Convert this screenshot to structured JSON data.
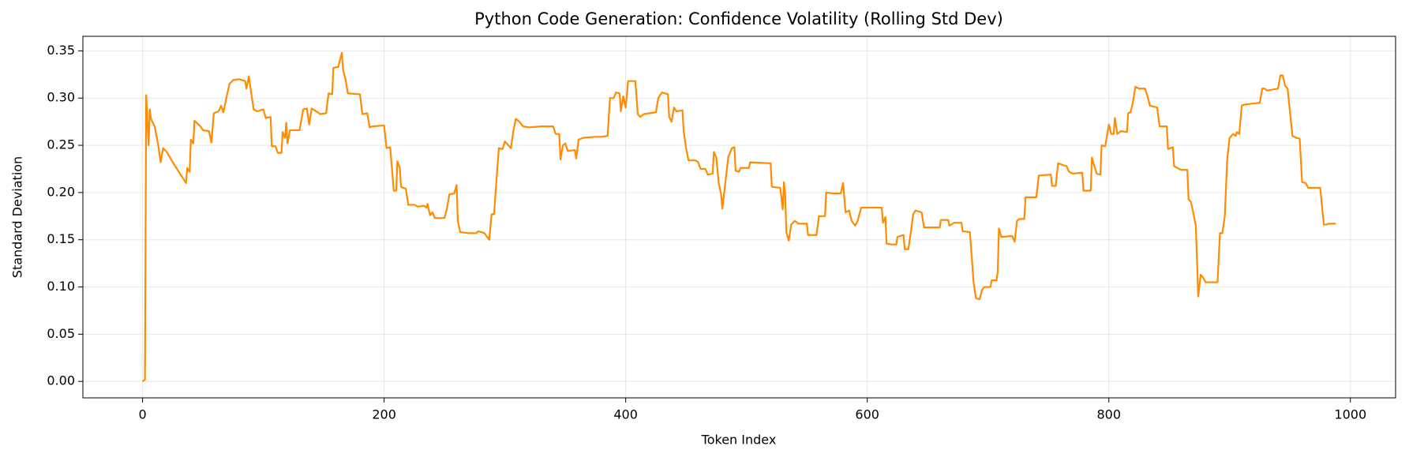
{
  "chart_data": {
    "type": "line",
    "title": "Python Code Generation: Confidence Volatility (Rolling Std Dev)",
    "xlabel": "Token Index",
    "ylabel": "Standard Deviation",
    "xlim": [
      -49.4,
      1037.4
    ],
    "ylim": [
      -0.0174,
      0.3654
    ],
    "xticks": [
      0,
      200,
      400,
      600,
      800,
      1000
    ],
    "yticks": [
      {
        "value": 0,
        "label": "0.00"
      },
      {
        "value": 0.05,
        "label": "0.05"
      },
      {
        "value": 0.1,
        "label": "0.10"
      },
      {
        "value": 0.15,
        "label": "0.15"
      },
      {
        "value": 0.2,
        "label": "0.20"
      },
      {
        "value": 0.25,
        "label": "0.25"
      },
      {
        "value": 0.3,
        "label": "0.30"
      },
      {
        "value": 0.35,
        "label": "0.35"
      }
    ],
    "grid": true,
    "x": [
      0,
      2,
      3,
      5,
      6,
      7,
      10,
      13,
      15,
      17,
      20,
      25,
      30,
      36,
      37,
      39,
      40,
      42,
      43,
      48,
      50,
      55,
      57,
      59,
      63,
      65,
      67,
      69,
      72,
      75,
      80,
      85,
      86,
      88,
      90,
      92,
      95,
      100,
      102,
      106,
      107,
      110,
      112,
      115,
      116,
      118,
      119,
      120,
      122,
      130,
      133,
      136,
      138,
      140,
      145,
      147,
      152,
      154,
      157,
      158,
      162,
      165,
      166,
      168,
      170,
      180,
      182,
      186,
      188,
      190,
      200,
      202,
      205,
      208,
      210,
      211,
      213,
      214,
      218,
      220,
      225,
      228,
      233,
      235,
      236,
      238,
      240,
      242,
      250,
      252,
      254,
      258,
      260,
      261,
      263,
      270,
      276,
      278,
      283,
      287,
      289,
      291,
      293,
      295,
      298,
      300,
      305,
      307,
      309,
      312,
      315,
      320,
      330,
      340,
      342,
      345,
      346,
      348,
      350,
      352,
      358,
      359,
      361,
      365,
      375,
      380,
      385,
      387,
      390,
      392,
      395,
      396,
      398,
      400,
      402,
      408,
      410,
      412,
      415,
      420,
      425,
      427,
      430,
      435,
      436,
      438,
      440,
      442,
      447,
      448,
      450,
      452,
      458,
      460,
      462,
      466,
      468,
      472,
      473,
      475,
      477,
      479,
      480,
      482,
      485,
      488,
      490,
      491,
      494,
      495,
      502,
      503,
      520,
      521,
      528,
      530,
      531,
      532,
      533,
      535,
      537,
      540,
      543,
      550,
      551,
      558,
      560,
      565,
      566,
      572,
      578,
      580,
      582,
      585,
      587,
      590,
      592,
      595,
      612,
      613,
      615,
      616,
      620,
      624,
      625,
      630,
      631,
      634,
      636,
      638,
      640,
      645,
      647,
      660,
      661,
      667,
      668,
      672,
      678,
      679,
      685,
      688,
      690,
      693,
      695,
      697,
      702,
      703,
      707,
      708,
      709,
      711,
      720,
      722,
      724,
      726,
      730,
      731,
      740,
      742,
      752,
      753,
      756,
      758,
      762,
      765,
      767,
      770,
      778,
      779,
      785,
      786,
      788,
      790,
      793,
      794,
      797,
      800,
      802,
      804,
      805,
      807,
      810,
      815,
      816,
      818,
      820,
      822,
      825,
      830,
      832,
      834,
      840,
      842,
      848,
      849,
      853,
      854,
      858,
      860,
      865,
      866,
      868,
      870,
      872,
      874,
      876,
      878,
      880,
      885,
      890,
      892,
      894,
      896,
      898,
      900,
      903,
      905,
      906,
      908,
      910,
      912,
      918,
      925,
      927,
      929,
      931,
      940,
      942,
      944,
      946,
      948,
      950,
      952,
      955,
      958,
      960,
      963,
      965,
      975,
      978,
      980,
      982,
      988
    ],
    "series": [
      {
        "name": "Rolling Std Dev",
        "color": "#ff8c00",
        "values": [
          0.0,
          0.002,
          0.303,
          0.25,
          0.288,
          0.278,
          0.27,
          0.25,
          0.232,
          0.247,
          0.243,
          0.232,
          0.222,
          0.21,
          0.226,
          0.222,
          0.256,
          0.252,
          0.276,
          0.27,
          0.266,
          0.265,
          0.253,
          0.284,
          0.286,
          0.292,
          0.285,
          0.298,
          0.315,
          0.319,
          0.32,
          0.318,
          0.31,
          0.323,
          0.305,
          0.288,
          0.286,
          0.288,
          0.279,
          0.28,
          0.249,
          0.249,
          0.242,
          0.242,
          0.264,
          0.258,
          0.274,
          0.252,
          0.266,
          0.266,
          0.288,
          0.289,
          0.272,
          0.289,
          0.285,
          0.283,
          0.284,
          0.305,
          0.304,
          0.332,
          0.333,
          0.348,
          0.33,
          0.32,
          0.305,
          0.304,
          0.283,
          0.284,
          0.269,
          0.27,
          0.271,
          0.247,
          0.248,
          0.202,
          0.202,
          0.233,
          0.226,
          0.206,
          0.204,
          0.187,
          0.187,
          0.185,
          0.186,
          0.184,
          0.188,
          0.176,
          0.179,
          0.173,
          0.173,
          0.183,
          0.198,
          0.199,
          0.208,
          0.17,
          0.158,
          0.157,
          0.157,
          0.159,
          0.157,
          0.15,
          0.177,
          0.177,
          0.213,
          0.247,
          0.246,
          0.254,
          0.247,
          0.265,
          0.278,
          0.275,
          0.27,
          0.269,
          0.27,
          0.27,
          0.262,
          0.262,
          0.235,
          0.25,
          0.252,
          0.244,
          0.245,
          0.236,
          0.256,
          0.258,
          0.259,
          0.259,
          0.26,
          0.3,
          0.3,
          0.306,
          0.305,
          0.286,
          0.302,
          0.29,
          0.318,
          0.318,
          0.283,
          0.28,
          0.283,
          0.284,
          0.285,
          0.3,
          0.306,
          0.304,
          0.28,
          0.275,
          0.29,
          0.286,
          0.287,
          0.265,
          0.247,
          0.234,
          0.234,
          0.232,
          0.225,
          0.225,
          0.219,
          0.22,
          0.243,
          0.237,
          0.21,
          0.198,
          0.183,
          0.205,
          0.238,
          0.247,
          0.248,
          0.223,
          0.222,
          0.226,
          0.226,
          0.232,
          0.231,
          0.206,
          0.205,
          0.182,
          0.211,
          0.2,
          0.158,
          0.149,
          0.166,
          0.17,
          0.167,
          0.167,
          0.155,
          0.155,
          0.175,
          0.175,
          0.2,
          0.199,
          0.199,
          0.21,
          0.179,
          0.181,
          0.17,
          0.165,
          0.17,
          0.184,
          0.184,
          0.168,
          0.174,
          0.146,
          0.145,
          0.145,
          0.153,
          0.155,
          0.14,
          0.14,
          0.157,
          0.177,
          0.181,
          0.179,
          0.163,
          0.163,
          0.171,
          0.171,
          0.165,
          0.168,
          0.168,
          0.159,
          0.158,
          0.105,
          0.088,
          0.087,
          0.097,
          0.1,
          0.1,
          0.107,
          0.107,
          0.116,
          0.162,
          0.153,
          0.154,
          0.148,
          0.17,
          0.172,
          0.172,
          0.195,
          0.195,
          0.218,
          0.219,
          0.207,
          0.207,
          0.231,
          0.229,
          0.228,
          0.222,
          0.22,
          0.221,
          0.202,
          0.202,
          0.237,
          0.228,
          0.22,
          0.219,
          0.25,
          0.249,
          0.272,
          0.262,
          0.262,
          0.279,
          0.262,
          0.265,
          0.264,
          0.284,
          0.285,
          0.296,
          0.312,
          0.31,
          0.31,
          0.302,
          0.292,
          0.29,
          0.27,
          0.27,
          0.246,
          0.248,
          0.228,
          0.225,
          0.224,
          0.224,
          0.193,
          0.19,
          0.178,
          0.165,
          0.09,
          0.113,
          0.11,
          0.105,
          0.105,
          0.105,
          0.157,
          0.157,
          0.175,
          0.235,
          0.258,
          0.262,
          0.26,
          0.264,
          0.262,
          0.292,
          0.293,
          0.294,
          0.295,
          0.31,
          0.31,
          0.308,
          0.31,
          0.324,
          0.324,
          0.313,
          0.31,
          0.285,
          0.26,
          0.258,
          0.257,
          0.211,
          0.21,
          0.205,
          0.205,
          0.166,
          0.166,
          0.167,
          0.167
        ]
      }
    ]
  }
}
